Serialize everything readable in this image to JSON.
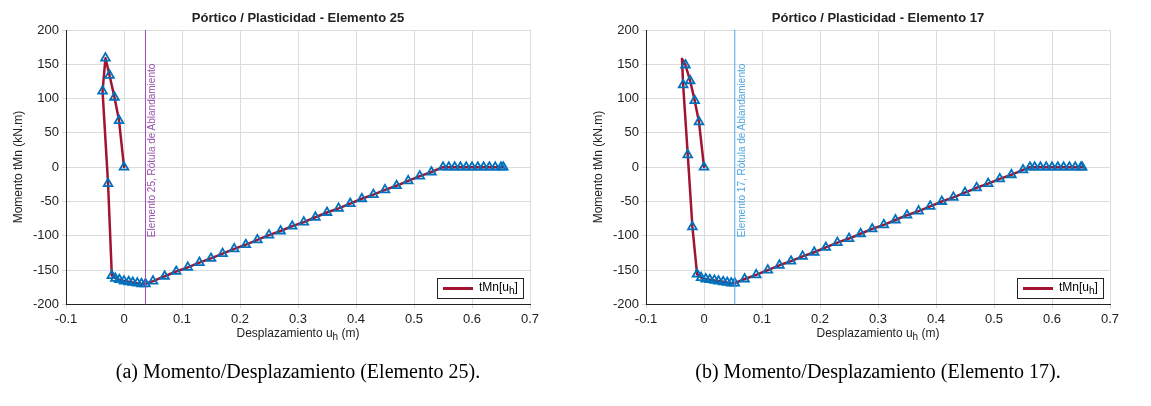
{
  "chart_data": [
    {
      "type": "line",
      "title": "Pórtico / Plasticidad - Elemento 25",
      "xlabel": "Desplazamiento  u$_{h}$  (m)",
      "ylabel": "Momento tMn (kN.m)",
      "xlim": [
        -0.1,
        0.7
      ],
      "xticks": [
        -0.1,
        0,
        0.1,
        0.2,
        0.3,
        0.4,
        0.5,
        0.6,
        0.7
      ],
      "ylim": [
        -200,
        200
      ],
      "yticks": [
        -200,
        -150,
        -100,
        -50,
        0,
        50,
        100,
        150,
        200
      ],
      "grid": true,
      "legend": "bottom right",
      "series": [
        {
          "name": "tMn[u$_{h}$]",
          "type": "line",
          "color": "#a2142f",
          "marker": "none",
          "x": [
            0,
            -0.0086,
            -0.0165,
            -0.025,
            -0.032,
            -0.037,
            -0.0275,
            -0.021,
            -0.015,
            -0.008,
            0,
            0.008,
            0.015,
            0.023,
            0.03,
            0.037,
            0.05,
            0.07,
            0.09,
            0.11,
            0.13,
            0.15,
            0.17,
            0.19,
            0.21,
            0.23,
            0.25,
            0.27,
            0.29,
            0.31,
            0.33,
            0.35,
            0.37,
            0.39,
            0.41,
            0.43,
            0.45,
            0.47,
            0.49,
            0.51,
            0.53,
            0.55,
            0.56,
            0.57,
            0.58,
            0.59,
            0.6,
            0.61,
            0.62,
            0.63,
            0.64,
            0.65,
            0.654
          ],
          "values": [
            0,
            68,
            102,
            134,
            159,
            111,
            -24,
            -158,
            -162,
            -164,
            -166,
            -167,
            -168,
            -169,
            -170,
            -170,
            -166,
            -159,
            -152,
            -146,
            -139,
            -133,
            -126,
            -119,
            -113,
            -106,
            -99,
            -93,
            -86,
            -80,
            -73,
            -66,
            -60,
            -53,
            -46,
            -40,
            -33,
            -27,
            -20,
            -13,
            -7,
            0,
            0,
            0,
            0,
            0,
            0,
            0,
            0,
            0,
            0,
            0,
            0
          ]
        },
        {
          "type": "scatter",
          "color": "#0072bd",
          "marker": "triangle",
          "x": [
            0,
            -0.0086,
            -0.0165,
            -0.025,
            -0.032,
            -0.037,
            -0.0275,
            -0.021,
            -0.015,
            -0.008,
            0,
            0.008,
            0.015,
            0.023,
            0.03,
            0.037,
            0.05,
            0.07,
            0.09,
            0.11,
            0.13,
            0.15,
            0.17,
            0.19,
            0.21,
            0.23,
            0.25,
            0.27,
            0.29,
            0.31,
            0.33,
            0.35,
            0.37,
            0.39,
            0.41,
            0.43,
            0.45,
            0.47,
            0.49,
            0.51,
            0.53,
            0.55,
            0.56,
            0.57,
            0.58,
            0.59,
            0.6,
            0.61,
            0.62,
            0.63,
            0.64,
            0.65,
            0.654
          ],
          "values": [
            0,
            68,
            102,
            134,
            159,
            111,
            -24,
            -158,
            -162,
            -164,
            -166,
            -167,
            -168,
            -169,
            -170,
            -170,
            -166,
            -159,
            -152,
            -146,
            -139,
            -133,
            -126,
            -119,
            -113,
            -106,
            -99,
            -93,
            -86,
            -80,
            -73,
            -66,
            -60,
            -53,
            -46,
            -40,
            -33,
            -27,
            -20,
            -13,
            -7,
            0,
            0,
            0,
            0,
            0,
            0,
            0,
            0,
            0,
            0,
            0,
            0
          ]
        }
      ],
      "ref_lines": [
        {
          "axis": "x",
          "value": 0.037,
          "label": "Elemento 25, Rótula de Ablandamiento",
          "color": "#9b4fb0"
        }
      ],
      "annotations": [
        "(a) Momento/Desplazamiento (Elemento 25)."
      ]
    },
    {
      "type": "line",
      "title": "Pórtico / Plasticidad - Elemento 17",
      "xlabel": "Desplazamiento  u$_{h}$  (m)",
      "ylabel": "Momento tMn (kN.m)",
      "xlim": [
        -0.1,
        0.7
      ],
      "xticks": [
        -0.1,
        0,
        0.1,
        0.2,
        0.3,
        0.4,
        0.5,
        0.6,
        0.7
      ],
      "ylim": [
        -200,
        200
      ],
      "yticks": [
        -200,
        -150,
        -100,
        -50,
        0,
        50,
        100,
        150,
        200
      ],
      "grid": true,
      "legend": "bottom right",
      "series": [
        {
          "name": "tMn[u$_{h}$]",
          "type": "line",
          "color": "#a2142f",
          "marker": "none",
          "x": [
            0,
            -0.0087,
            -0.016,
            -0.024,
            -0.032,
            -0.038,
            -0.036,
            -0.028,
            -0.02,
            -0.012,
            -0.005,
            0.003,
            0.01,
            0.018,
            0.025,
            0.033,
            0.04,
            0.047,
            0.053,
            0.07,
            0.09,
            0.11,
            0.13,
            0.15,
            0.17,
            0.19,
            0.21,
            0.23,
            0.25,
            0.27,
            0.29,
            0.31,
            0.33,
            0.35,
            0.37,
            0.39,
            0.41,
            0.43,
            0.45,
            0.47,
            0.49,
            0.51,
            0.53,
            0.55,
            0.562,
            0.57,
            0.58,
            0.59,
            0.6,
            0.61,
            0.62,
            0.63,
            0.64,
            0.65,
            0.652
          ],
          "values": [
            0,
            66,
            97,
            126,
            149,
            158,
            120,
            18,
            -87,
            -156,
            -161,
            -163,
            -164,
            -165,
            -166,
            -167,
            -168,
            -169,
            -169,
            -163,
            -157,
            -150,
            -143,
            -137,
            -130,
            -124,
            -117,
            -110,
            -104,
            -97,
            -90,
            -84,
            -77,
            -70,
            -64,
            -57,
            -50,
            -44,
            -37,
            -30,
            -24,
            -17,
            -11,
            -4,
            0,
            0,
            0,
            0,
            0,
            0,
            0,
            0,
            0,
            0,
            0
          ]
        },
        {
          "type": "scatter",
          "color": "#0072bd",
          "marker": "triangle",
          "x": [
            0,
            -0.0087,
            -0.016,
            -0.024,
            -0.032,
            -0.036,
            -0.028,
            -0.02,
            -0.012,
            -0.005,
            0.003,
            0.01,
            0.018,
            0.025,
            0.033,
            0.04,
            0.047,
            0.053,
            0.07,
            0.09,
            0.11,
            0.13,
            0.15,
            0.17,
            0.19,
            0.21,
            0.23,
            0.25,
            0.27,
            0.29,
            0.31,
            0.33,
            0.35,
            0.37,
            0.39,
            0.41,
            0.43,
            0.45,
            0.47,
            0.49,
            0.51,
            0.53,
            0.55,
            0.562,
            0.57,
            0.58,
            0.59,
            0.6,
            0.61,
            0.62,
            0.63,
            0.64,
            0.65,
            0.652
          ],
          "values": [
            0,
            66,
            97,
            126,
            149,
            120,
            18,
            -87,
            -156,
            -161,
            -163,
            -164,
            -165,
            -166,
            -167,
            -168,
            -169,
            -169,
            -163,
            -157,
            -150,
            -143,
            -137,
            -130,
            -124,
            -117,
            -110,
            -104,
            -97,
            -90,
            -84,
            -77,
            -70,
            -64,
            -57,
            -50,
            -44,
            -37,
            -30,
            -24,
            -17,
            -11,
            -4,
            0,
            0,
            0,
            0,
            0,
            0,
            0,
            0,
            0,
            0,
            0
          ]
        }
      ],
      "ref_lines": [
        {
          "axis": "x",
          "value": 0.053,
          "label": "Elemento 17, Rótula de Ablandamiento",
          "color": "#4da6e0"
        }
      ],
      "annotations": [
        "(b) Momento/Desplazamiento (Elemento 17)."
      ]
    }
  ]
}
